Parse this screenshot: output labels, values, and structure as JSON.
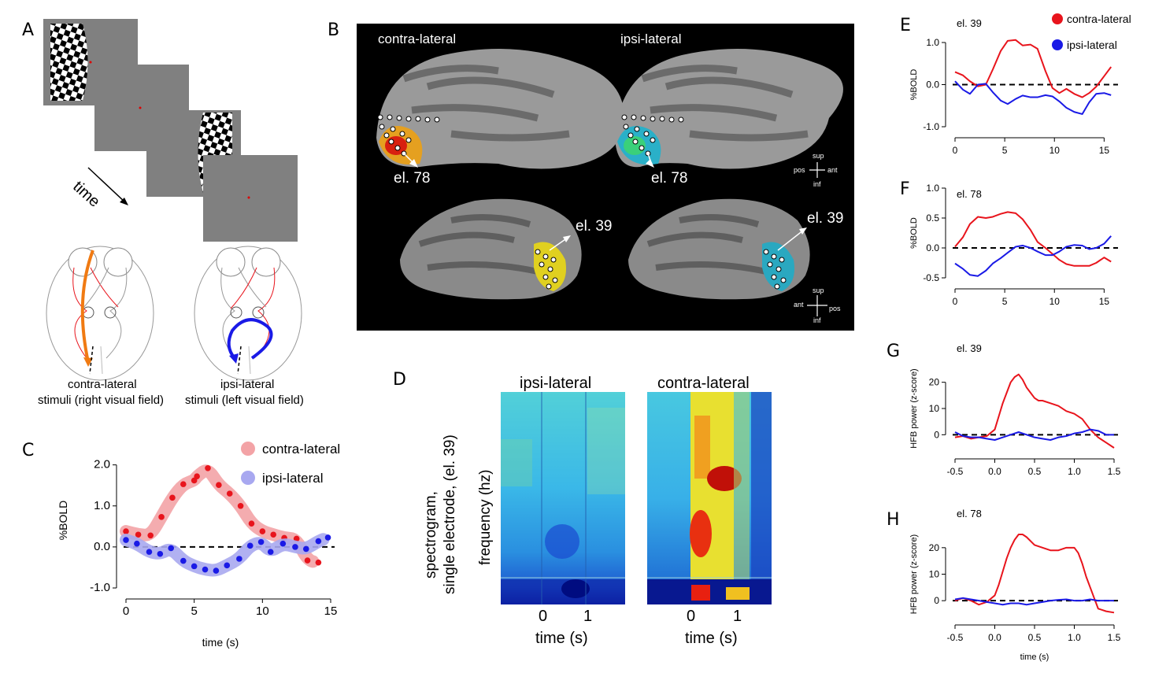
{
  "panel_labels": {
    "A": "A",
    "B": "B",
    "C": "C",
    "D": "D",
    "E": "E",
    "F": "F",
    "G": "G",
    "H": "H"
  },
  "panel_a": {
    "time_label": "time",
    "caption_contra_1": "contra-lateral",
    "caption_contra_2": "stimuli (right visual field)",
    "caption_ipsi_1": "ipsi-lateral",
    "caption_ipsi_2": "stimuli (left visual field)"
  },
  "panel_b": {
    "contra_title": "contra-lateral",
    "ipsi_title": "ipsi-lateral",
    "el78_left": "el. 78",
    "el78_right": "el. 78",
    "el39_left": "el. 39",
    "el39_right": "el. 39",
    "orient_top": {
      "sup": "sup",
      "inf": "inf",
      "pos": "pos",
      "ant": "ant"
    },
    "orient_bottom": {
      "sup": "sup",
      "inf": "inf",
      "ant": "ant",
      "pos": "pos"
    }
  },
  "panel_d": {
    "ylabel_1": "spectrogram,",
    "ylabel_2": "single electrode, (el. 39)",
    "ylabel_3": "frequency (hz)",
    "ipsi_title": "ipsi-lateral",
    "contra_title": "contra-lateral",
    "xticks": [
      "0",
      "1"
    ],
    "xlabel": "time (s)"
  },
  "colors": {
    "contra": "#e8141c",
    "ipsi": "#1a1ae6",
    "contra_light": "#f3a3a6",
    "ipsi_light": "#a8a8f0"
  },
  "chart_data": [
    {
      "id": "C",
      "type": "scatter",
      "xlabel": "time (s)",
      "ylabel": "%BOLD",
      "xlim": [
        0,
        15
      ],
      "ylim": [
        -1,
        2.3
      ],
      "xticks": [
        "0",
        "5",
        "10",
        "15"
      ],
      "yticks": [
        "2.0",
        "1.0",
        "0.0",
        "-1.0"
      ],
      "legend": [
        "contra-lateral",
        "ipsi-lateral"
      ],
      "series": [
        {
          "name": "contra-lateral",
          "x": [
            0,
            0.9,
            1.8,
            2.6,
            3.4,
            4.2,
            5.0,
            5.2,
            6.0,
            6.8,
            7.6,
            8.4,
            9.2,
            10.0,
            10.8,
            11.6,
            12.5,
            13.3,
            14.1
          ],
          "values": [
            0.38,
            0.3,
            0.28,
            0.73,
            1.2,
            1.53,
            1.62,
            1.72,
            1.92,
            1.51,
            1.3,
            1.0,
            0.57,
            0.38,
            0.3,
            0.22,
            0.2,
            -0.33,
            -0.38
          ]
        },
        {
          "name": "ipsi-lateral",
          "x": [
            0,
            0.8,
            1.7,
            2.5,
            3.3,
            4.2,
            5.0,
            5.8,
            6.6,
            7.4,
            8.3,
            9.1,
            9.9,
            10.6,
            11.5,
            12.4,
            13.2,
            14.1,
            14.8
          ],
          "values": [
            0.17,
            0.08,
            -0.12,
            -0.17,
            -0.03,
            -0.34,
            -0.47,
            -0.55,
            -0.58,
            -0.45,
            -0.29,
            0.03,
            0.12,
            -0.12,
            0.08,
            0.0,
            -0.05,
            0.14,
            0.23
          ]
        }
      ]
    },
    {
      "id": "E",
      "type": "line",
      "annotation": "el. 39",
      "ylabel": "%BOLD",
      "xlim": [
        0,
        16
      ],
      "ylim": [
        -1.0,
        1.0
      ],
      "xticks": [
        "0",
        "5",
        "10",
        "15"
      ],
      "yticks": [
        "1.0",
        "0.0",
        "-1.0"
      ],
      "legend": [
        "contra-lateral",
        "ipsi-lateral"
      ],
      "series": [
        {
          "name": "contra-lateral",
          "x": [
            0,
            0.8,
            1.5,
            2.3,
            3.1,
            3.8,
            4.6,
            5.3,
            6.1,
            6.8,
            7.6,
            8.3,
            9.1,
            9.8,
            10.5,
            11.2,
            12.0,
            12.8,
            13.5,
            14.2,
            15.0,
            15.7
          ],
          "values": [
            0.3,
            0.22,
            0.08,
            -0.04,
            0.0,
            0.36,
            0.8,
            1.04,
            1.06,
            0.93,
            0.95,
            0.85,
            0.32,
            -0.08,
            -0.2,
            -0.1,
            -0.22,
            -0.3,
            -0.2,
            -0.05,
            0.2,
            0.42
          ]
        },
        {
          "name": "ipsi-lateral",
          "x": [
            0,
            0.8,
            1.5,
            2.3,
            3.1,
            3.8,
            4.6,
            5.3,
            6.1,
            6.8,
            7.6,
            8.3,
            9.1,
            9.8,
            10.5,
            11.2,
            12.0,
            12.8,
            13.5,
            14.2,
            15.0,
            15.7
          ],
          "values": [
            0.08,
            -0.12,
            -0.22,
            0.0,
            0.02,
            -0.18,
            -0.38,
            -0.46,
            -0.34,
            -0.26,
            -0.3,
            -0.3,
            -0.25,
            -0.28,
            -0.4,
            -0.55,
            -0.65,
            -0.7,
            -0.42,
            -0.22,
            -0.2,
            -0.25
          ]
        }
      ]
    },
    {
      "id": "F",
      "type": "line",
      "annotation": "el. 78",
      "ylabel": "%BOLD",
      "xlim": [
        0,
        16
      ],
      "ylim": [
        -0.5,
        1.0
      ],
      "xticks": [
        "0",
        "5",
        "10",
        "15"
      ],
      "yticks": [
        "1.0",
        "0.5",
        "0.0",
        "-0.5"
      ],
      "series": [
        {
          "name": "contra-lateral",
          "x": [
            0,
            0.8,
            1.5,
            2.3,
            3.1,
            3.8,
            4.6,
            5.3,
            6.1,
            6.8,
            7.6,
            8.3,
            9.1,
            9.8,
            10.5,
            11.2,
            12.0,
            12.8,
            13.5,
            14.2,
            15.0,
            15.7
          ],
          "values": [
            0.02,
            0.18,
            0.4,
            0.52,
            0.5,
            0.52,
            0.57,
            0.6,
            0.58,
            0.48,
            0.3,
            0.1,
            0.0,
            -0.1,
            -0.2,
            -0.27,
            -0.3,
            -0.3,
            -0.3,
            -0.25,
            -0.16,
            -0.23
          ]
        },
        {
          "name": "ipsi-lateral",
          "x": [
            0,
            0.8,
            1.5,
            2.3,
            3.1,
            3.8,
            4.6,
            5.3,
            6.1,
            6.8,
            7.6,
            8.3,
            9.1,
            9.8,
            10.5,
            11.2,
            12.0,
            12.8,
            13.5,
            14.2,
            15.0,
            15.7
          ],
          "values": [
            -0.26,
            -0.35,
            -0.45,
            -0.47,
            -0.38,
            -0.26,
            -0.17,
            -0.08,
            0.02,
            0.04,
            0.0,
            -0.06,
            -0.12,
            -0.12,
            -0.06,
            0.02,
            0.05,
            0.04,
            -0.02,
            0.0,
            0.07,
            0.2
          ]
        }
      ]
    },
    {
      "id": "G",
      "type": "line",
      "annotation": "el. 39",
      "ylabel": "HFB power (z-score)",
      "xlim": [
        -0.5,
        1.5
      ],
      "ylim": [
        -5,
        25
      ],
      "xticks": [
        "-0.5",
        "0.0",
        "0.5",
        "1.0",
        "1.5"
      ],
      "yticks": [
        "20",
        "10",
        "0"
      ],
      "series": [
        {
          "name": "contra-lateral",
          "x": [
            -0.5,
            -0.4,
            -0.3,
            -0.2,
            -0.1,
            0.0,
            0.05,
            0.1,
            0.15,
            0.2,
            0.25,
            0.3,
            0.35,
            0.4,
            0.45,
            0.5,
            0.55,
            0.6,
            0.7,
            0.8,
            0.9,
            1.0,
            1.1,
            1.2,
            1.3,
            1.4,
            1.5
          ],
          "values": [
            -1,
            -0.5,
            -1.5,
            -1,
            -0.5,
            2,
            7,
            12,
            16,
            20,
            22,
            23,
            21,
            18,
            16,
            14,
            13,
            13,
            12,
            11,
            9,
            8,
            6,
            2,
            -1,
            -3,
            -5
          ]
        },
        {
          "name": "ipsi-lateral",
          "x": [
            -0.5,
            -0.4,
            -0.3,
            -0.2,
            -0.1,
            0.0,
            0.1,
            0.2,
            0.3,
            0.4,
            0.5,
            0.6,
            0.7,
            0.8,
            0.9,
            1.0,
            1.1,
            1.2,
            1.3,
            1.4,
            1.5
          ],
          "values": [
            1,
            -0.5,
            -1,
            -1,
            -1.5,
            -2,
            -1,
            0,
            1,
            0,
            -1,
            -1.5,
            -2,
            -1,
            -0.5,
            0.5,
            1,
            2,
            1.5,
            0,
            0
          ]
        }
      ]
    },
    {
      "id": "H",
      "type": "line",
      "annotation": "el. 78",
      "ylabel": "HFB power (z-score)",
      "xlabel": "time (s)",
      "xlim": [
        -0.5,
        1.5
      ],
      "ylim": [
        -5,
        25
      ],
      "xticks": [
        "-0.5",
        "0.0",
        "0.5",
        "1.0",
        "1.5"
      ],
      "yticks": [
        "20",
        "10",
        "0"
      ],
      "series": [
        {
          "name": "contra-lateral",
          "x": [
            -0.5,
            -0.4,
            -0.3,
            -0.2,
            -0.1,
            0.0,
            0.05,
            0.1,
            0.15,
            0.2,
            0.25,
            0.3,
            0.35,
            0.4,
            0.5,
            0.6,
            0.7,
            0.8,
            0.9,
            1.0,
            1.05,
            1.1,
            1.15,
            1.2,
            1.25,
            1.3,
            1.4,
            1.5
          ],
          "values": [
            0,
            1,
            0,
            -1.5,
            -0.5,
            2,
            6,
            11,
            16,
            20,
            23,
            25,
            25,
            24,
            21,
            20,
            19,
            19,
            20,
            20,
            18,
            14,
            9,
            5,
            1,
            -3,
            -4,
            -4.5
          ]
        },
        {
          "name": "ipsi-lateral",
          "x": [
            -0.5,
            -0.4,
            -0.3,
            -0.2,
            -0.1,
            0.0,
            0.1,
            0.2,
            0.3,
            0.4,
            0.5,
            0.6,
            0.7,
            0.8,
            0.9,
            1.0,
            1.1,
            1.2,
            1.3,
            1.4,
            1.5
          ],
          "values": [
            0.5,
            1,
            0.5,
            0,
            -0.5,
            -1,
            -1.5,
            -1,
            -1,
            -1.5,
            -1,
            -0.5,
            0,
            0.3,
            0.5,
            0,
            0,
            0.5,
            0,
            0,
            0
          ]
        }
      ]
    }
  ]
}
